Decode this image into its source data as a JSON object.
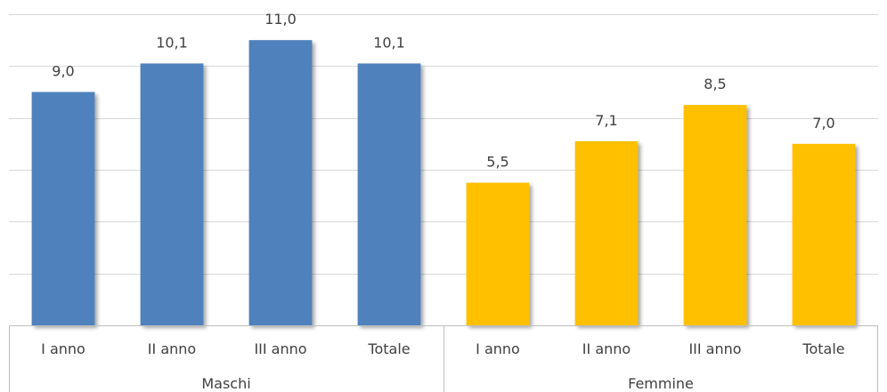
{
  "chart_data": {
    "type": "bar",
    "ylim": [
      0,
      12
    ],
    "grid": true,
    "groups": [
      {
        "name": "Maschi",
        "color": "#4f81bd",
        "categories": [
          "I  anno",
          "II anno",
          "III anno",
          "Totale"
        ],
        "values": [
          9.0,
          10.1,
          11.0,
          10.1
        ],
        "labels": [
          "9,0",
          "10,1",
          "11,0",
          "10,1"
        ]
      },
      {
        "name": "Femmine",
        "color": "#ffc000",
        "categories": [
          "I  anno",
          "II anno",
          "III anno",
          "Totale"
        ],
        "values": [
          5.5,
          7.1,
          8.5,
          7.0
        ],
        "labels": [
          "5,5",
          "7,1",
          "8,5",
          "7,0"
        ]
      }
    ]
  }
}
